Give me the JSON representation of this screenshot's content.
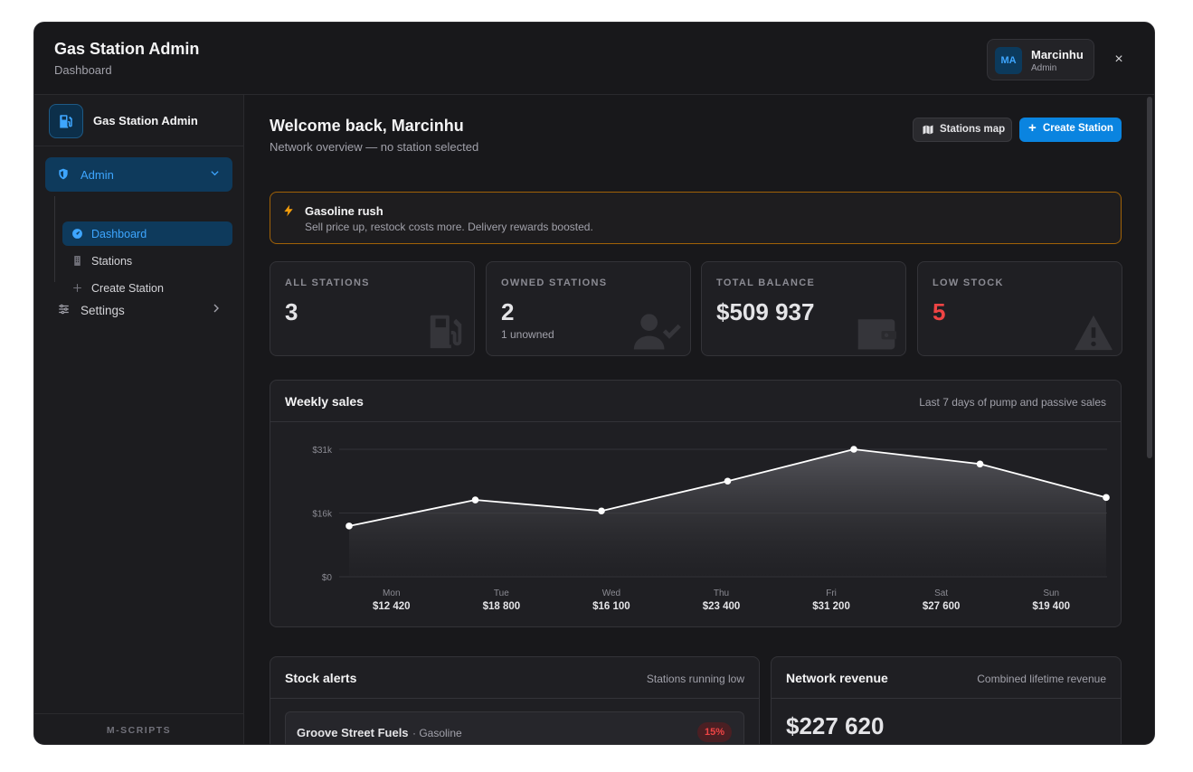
{
  "header": {
    "app_title": "Gas Station Admin",
    "page_subtitle": "Dashboard",
    "user": {
      "initials": "MA",
      "name": "Marcinhu",
      "role": "Admin"
    },
    "close_glyph": "×"
  },
  "sidebar": {
    "brand_label": "Gas Station Admin",
    "brand_icon": "fuel-pump-icon",
    "admin_label": "Admin",
    "admin_items": [
      {
        "label": "Dashboard",
        "icon": "gauge-icon",
        "active": true
      },
      {
        "label": "Stations",
        "icon": "building-icon",
        "active": false
      },
      {
        "label": "Create Station",
        "icon": "plus-icon",
        "active": false
      }
    ],
    "settings_label": "Settings",
    "footer": "M-SCRIPTS"
  },
  "main": {
    "welcome": "Welcome back, Marcinhu",
    "welcome_sub": "Network overview — no station selected",
    "map_button": "Stations map",
    "create_button": "Create Station",
    "event": {
      "title": "Gasoline rush",
      "description": "Sell price up, restock costs more. Delivery rewards boosted."
    },
    "stats": [
      {
        "label": "ALL STATIONS",
        "value": "3",
        "sub": "",
        "icon": "fuel-pump-icon"
      },
      {
        "label": "OWNED STATIONS",
        "value": "2",
        "sub": "1 unowned",
        "icon": "user-check-icon"
      },
      {
        "label": "TOTAL BALANCE",
        "value": "$509 937",
        "sub": "",
        "icon": "wallet-icon"
      },
      {
        "label": "LOW STOCK",
        "value": "5",
        "sub": "",
        "icon": "warning-icon"
      }
    ],
    "weekly_sales": {
      "title": "Weekly sales",
      "note": "Last 7 days of pump and passive sales",
      "day_values": [
        "$12 420",
        "$18 800",
        "$16 100",
        "$23 400",
        "$31 200",
        "$27 600",
        "$19 400"
      ]
    },
    "stock_alerts": {
      "title": "Stock alerts",
      "note": "Stations running low",
      "items": [
        {
          "name": "Groove Street Fuels",
          "fuel": "· Gasoline",
          "percent": "15%"
        }
      ]
    },
    "network_revenue": {
      "title": "Network revenue",
      "note": "Combined lifetime revenue",
      "value": "$227 620"
    }
  },
  "colors": {
    "accent": "#0a84e0",
    "accent_text": "#3ea6ff",
    "danger": "#ef4444",
    "warning_border": "#a16207",
    "warning_icon": "#f59e0b"
  },
  "chart_data": {
    "type": "area",
    "title": "Weekly sales",
    "categories": [
      "Mon",
      "Tue",
      "Wed",
      "Thu",
      "Fri",
      "Sat",
      "Sun"
    ],
    "values": [
      12420,
      18800,
      16100,
      23400,
      31200,
      27600,
      19400
    ],
    "y_ticks": [
      "$0",
      "$16k",
      "$31k"
    ],
    "y_tick_values": [
      0,
      15600,
      31200
    ],
    "ylim": [
      0,
      31200
    ],
    "grid": true,
    "legend": "none"
  }
}
